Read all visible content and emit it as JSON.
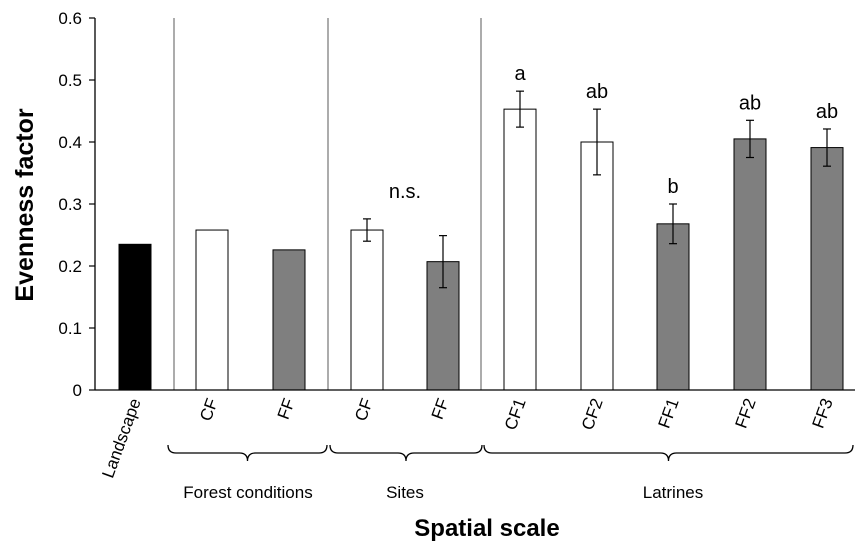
{
  "chart_data": {
    "type": "bar",
    "title": "",
    "xlabel": "Spatial scale",
    "ylabel": "Evenness factor",
    "ylim": [
      0,
      0.6
    ],
    "yticks": [
      "0",
      "0.1",
      "0.2",
      "0.3",
      "0.4",
      "0.5",
      "0.6"
    ],
    "grid": false,
    "legend": "none",
    "colors": {
      "black": "#000000",
      "white": "#ffffff",
      "gray": "#7f7f7f",
      "axis": "#000000",
      "separator": "#808080"
    },
    "categories": [
      "Landscape",
      "CF",
      "FF",
      "CF",
      "FF",
      "CF1",
      "CF2",
      "FF1",
      "FF2",
      "FF3"
    ],
    "values": [
      0.235,
      0.258,
      0.226,
      0.258,
      0.207,
      0.453,
      0.4,
      0.268,
      0.405,
      0.391
    ],
    "errors": [
      null,
      null,
      null,
      0.018,
      0.042,
      0.029,
      0.053,
      0.032,
      0.03,
      0.03
    ],
    "fills": [
      "black",
      "white",
      "gray",
      "white",
      "gray",
      "white",
      "white",
      "gray",
      "gray",
      "gray"
    ],
    "significance": [
      {
        "text": "n.s.",
        "y": 0.31
      },
      {
        "text": "a",
        "bar": 5
      },
      {
        "text": "ab",
        "bar": 6
      },
      {
        "text": "b",
        "bar": 7
      },
      {
        "text": "ab",
        "bar": 8
      },
      {
        "text": "ab",
        "bar": 9
      }
    ],
    "groups": [
      {
        "label": "Forest conditions",
        "bars": [
          1,
          2
        ]
      },
      {
        "label": "Sites",
        "bars": [
          3,
          4
        ]
      },
      {
        "label": "Latrines",
        "bars": [
          5,
          9
        ]
      }
    ]
  }
}
